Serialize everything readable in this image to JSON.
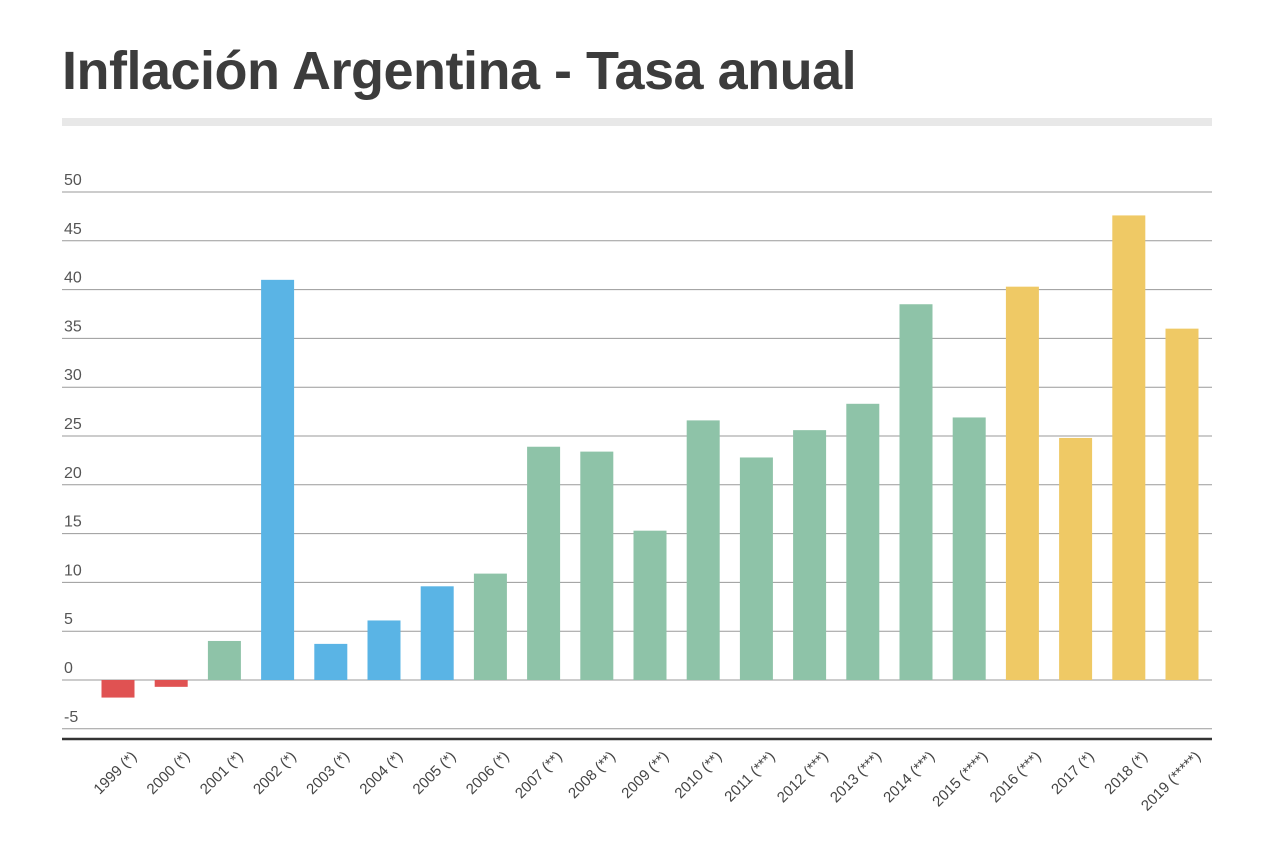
{
  "title": "Inflación Argentina - Tasa anual",
  "chart_data": {
    "type": "bar",
    "title": "Inflación Argentina - Tasa anual",
    "xlabel": "",
    "ylabel": "",
    "ylim": [
      -5,
      50
    ],
    "yticks": [
      50,
      45,
      40,
      35,
      30,
      25,
      20,
      15,
      10,
      5,
      0,
      -5
    ],
    "yticks_labels": [
      "50",
      "45",
      "40",
      "35",
      "30",
      "25",
      "20",
      "15",
      "10",
      "5",
      "0",
      "-5"
    ],
    "grid": true,
    "categories": [
      "1999 (*)",
      "2000 (*)",
      "2001 (*)",
      "2002 (*)",
      "2003 (*)",
      "2004 (*)",
      "2005 (*)",
      "2006 (*)",
      "2007 (**)",
      "2008 (**)",
      "2009 (**)",
      "2010 (**)",
      "2011 (***)",
      "2012 (***)",
      "2013 (***)",
      "2014 (***)",
      "2015 (****)",
      "2016 (***)",
      "2017 (*)",
      "2018 (*)",
      "2019 (*****)"
    ],
    "values": [
      -1.8,
      -0.7,
      4.0,
      41.0,
      3.7,
      6.1,
      9.6,
      10.9,
      23.9,
      23.4,
      15.3,
      26.6,
      22.8,
      25.6,
      28.3,
      38.5,
      26.9,
      40.3,
      24.8,
      47.6,
      36.0
    ],
    "colors": [
      "#e05252",
      "#e05252",
      "#8ec3a8",
      "#5ab4e5",
      "#5ab4e5",
      "#5ab4e5",
      "#5ab4e5",
      "#8ec3a8",
      "#8ec3a8",
      "#8ec3a8",
      "#8ec3a8",
      "#8ec3a8",
      "#8ec3a8",
      "#8ec3a8",
      "#8ec3a8",
      "#8ec3a8",
      "#8ec3a8",
      "#efc965",
      "#efc965",
      "#efc965",
      "#efc965"
    ]
  }
}
